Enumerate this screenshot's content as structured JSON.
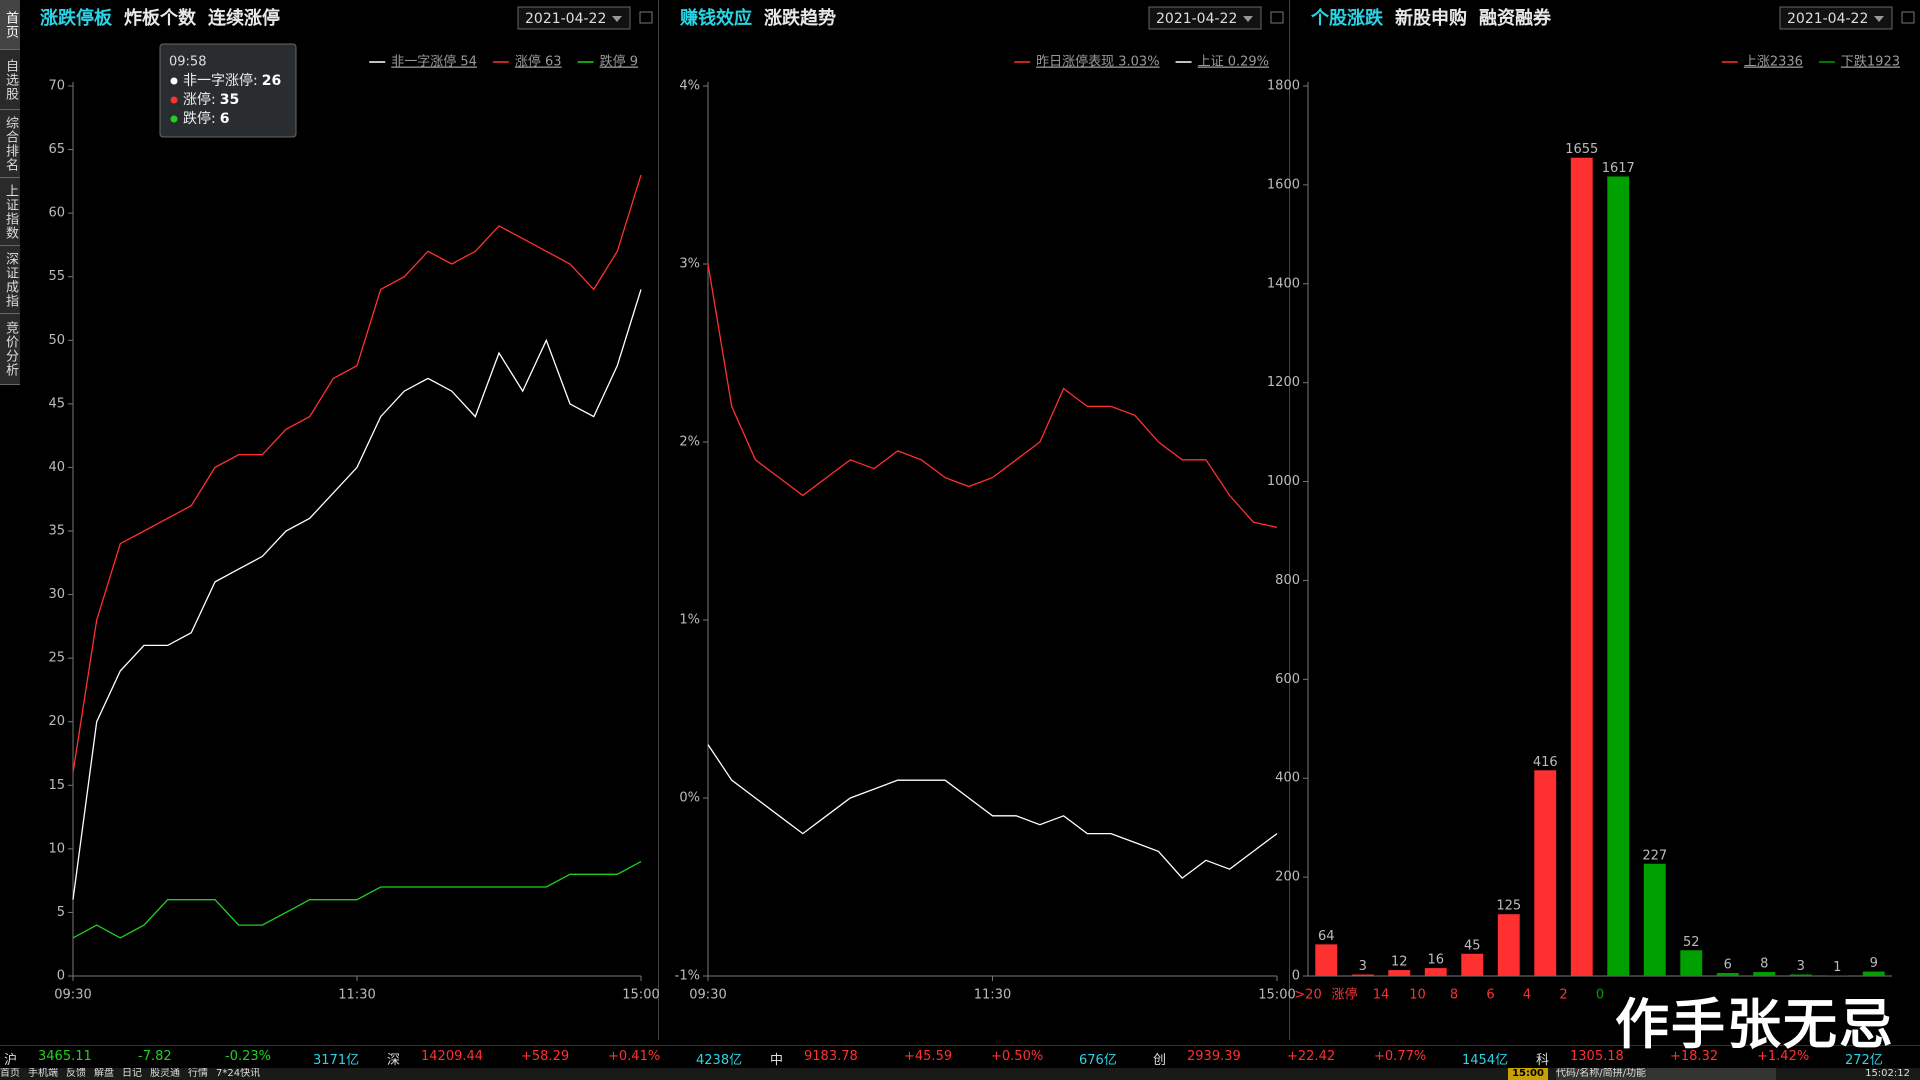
{
  "sidebar": [
    "首页",
    "自选股",
    "综合排名",
    "上证指数",
    "深证成指",
    "竞价分析"
  ],
  "panels": [
    {
      "tabs": [
        "涨跌停板",
        "炸板个数",
        "连续涨停"
      ],
      "date": "2021-04-22"
    },
    {
      "tabs": [
        "赚钱效应",
        "涨跌趋势"
      ],
      "date": "2021-04-22"
    },
    {
      "tabs": [
        "个股涨跌",
        "新股申购",
        "融资融券"
      ],
      "date": "2021-04-22"
    }
  ],
  "tooltip": {
    "time": "09:58",
    "items": [
      {
        "label": "非一字涨停:",
        "value": 26,
        "color": "#ffffff"
      },
      {
        "label": "涨停:",
        "value": 35,
        "color": "#ff3030"
      },
      {
        "label": "跌停:",
        "value": 6,
        "color": "#20d020"
      }
    ]
  },
  "chart_data": [
    {
      "type": "line",
      "x": [
        0,
        10,
        20,
        30,
        40,
        50,
        60,
        70,
        80,
        90,
        100,
        110,
        120,
        130,
        140,
        150,
        160,
        170,
        180,
        190,
        200,
        210,
        220,
        230,
        240
      ],
      "xlim": [
        0,
        240
      ],
      "xticks": [
        {
          "value": 0,
          "label": "09:30"
        },
        {
          "value": 120,
          "label": "11:30"
        },
        {
          "value": 240,
          "label": "15:00"
        }
      ],
      "ylim": [
        0,
        70
      ],
      "yticks": [
        0,
        5,
        10,
        15,
        20,
        25,
        30,
        35,
        40,
        45,
        50,
        55,
        60,
        65,
        70
      ],
      "series": [
        {
          "name": "非一字涨停 54",
          "color": "#ffffff",
          "values": [
            6,
            20,
            24,
            26,
            26,
            27,
            31,
            32,
            33,
            35,
            36,
            38,
            40,
            44,
            46,
            47,
            46,
            44,
            49,
            46,
            50,
            45,
            44,
            48,
            54
          ]
        },
        {
          "name": "涨停 63",
          "color": "#ff3030",
          "values": [
            16,
            28,
            34,
            35,
            36,
            37,
            40,
            41,
            41,
            43,
            44,
            47,
            48,
            54,
            55,
            57,
            56,
            57,
            59,
            58,
            57,
            56,
            54,
            57,
            63
          ]
        },
        {
          "name": "跌停 9",
          "color": "#20d020",
          "values": [
            3,
            4,
            3,
            4,
            6,
            6,
            6,
            4,
            4,
            5,
            6,
            6,
            6,
            7,
            7,
            7,
            7,
            7,
            7,
            7,
            7,
            8,
            8,
            8,
            9
          ]
        }
      ]
    },
    {
      "type": "line",
      "x": [
        0,
        10,
        20,
        30,
        40,
        50,
        60,
        70,
        80,
        90,
        100,
        110,
        120,
        130,
        140,
        150,
        160,
        170,
        180,
        190,
        200,
        210,
        220,
        230,
        240
      ],
      "xlim": [
        0,
        240
      ],
      "xticks": [
        {
          "value": 0,
          "label": "09:30"
        },
        {
          "value": 120,
          "label": "11:30"
        },
        {
          "value": 240,
          "label": "15:00"
        }
      ],
      "ylim": [
        -1,
        4
      ],
      "yticks": [
        {
          "value": -1,
          "label": "-1%"
        },
        {
          "value": 0,
          "label": "0%"
        },
        {
          "value": 1,
          "label": "1%"
        },
        {
          "value": 2,
          "label": "2%"
        },
        {
          "value": 3,
          "label": "3%"
        },
        {
          "value": 4,
          "label": "4%"
        }
      ],
      "series": [
        {
          "name": "昨日涨停表现 3.03%",
          "color": "#ff3030",
          "values": [
            3.0,
            2.2,
            1.9,
            1.8,
            1.7,
            1.8,
            1.9,
            1.85,
            1.95,
            1.9,
            1.8,
            1.75,
            1.8,
            1.9,
            2.0,
            2.3,
            2.2,
            2.2,
            2.15,
            2.0,
            1.9,
            1.9,
            1.7,
            1.55,
            1.52
          ]
        },
        {
          "name": "上证 0.29%",
          "color": "#ffffff",
          "values": [
            0.3,
            0.1,
            0.0,
            -0.1,
            -0.2,
            -0.1,
            0.0,
            0.05,
            0.1,
            0.1,
            0.1,
            0.0,
            -0.1,
            -0.1,
            -0.15,
            -0.1,
            -0.2,
            -0.2,
            -0.25,
            -0.3,
            -0.45,
            -0.35,
            -0.4,
            -0.3,
            -0.2
          ]
        }
      ]
    },
    {
      "type": "bar",
      "categories": [
        ">20",
        "涨停",
        "14",
        "10",
        "8",
        "6",
        "4",
        "2",
        "0",
        null,
        null,
        null,
        null,
        null,
        null,
        null
      ],
      "values": [
        64,
        3,
        12,
        16,
        45,
        125,
        416,
        1655,
        1617,
        227,
        52,
        6,
        8,
        3,
        1,
        9
      ],
      "colors": [
        "#ff3030",
        "#ff3030",
        "#ff3030",
        "#ff3030",
        "#ff3030",
        "#ff3030",
        "#ff3030",
        "#ff3030",
        "#00a000",
        "#00a000",
        "#00a000",
        "#00a000",
        "#00a000",
        "#00a000",
        "#00a000",
        "#00a000"
      ],
      "ylim": [
        0,
        1800
      ],
      "yticks": [
        0,
        200,
        400,
        600,
        800,
        1000,
        1200,
        1400,
        1600,
        1800
      ],
      "legend": [
        {
          "name": "上涨2336",
          "color": "#ff3030"
        },
        {
          "name": "下跌1923",
          "color": "#00a000"
        }
      ]
    }
  ],
  "ticker": [
    {
      "name": "沪",
      "price": "3465.11",
      "change": "-7.82",
      "pct": "-0.23%",
      "amount": "3171亿",
      "color": "#20d020"
    },
    {
      "name": "深",
      "price": "14209.44",
      "change": "+58.29",
      "pct": "+0.41%",
      "amount": "4238亿",
      "color": "#ff3030"
    },
    {
      "name": "中",
      "price": "9183.78",
      "change": "+45.59",
      "pct": "+0.50%",
      "amount": "676亿",
      "color": "#ff3030"
    },
    {
      "name": "创",
      "price": "2939.39",
      "change": "+22.42",
      "pct": "+0.77%",
      "amount": "1454亿",
      "color": "#ff3030"
    },
    {
      "name": "科",
      "price": "1305.18",
      "change": "+18.32",
      "pct": "+1.42%",
      "amount": "272亿",
      "color": "#ff3030"
    }
  ],
  "statusbar": {
    "items": [
      "首页",
      "手机端",
      "反馈",
      "解盘",
      "日记",
      "股灵通",
      "行情",
      "7*24快讯"
    ],
    "time": "15:00",
    "search": "代码/名称/简拼/功能",
    "clock": "15:02:12"
  },
  "watermark": "作手张无忌"
}
